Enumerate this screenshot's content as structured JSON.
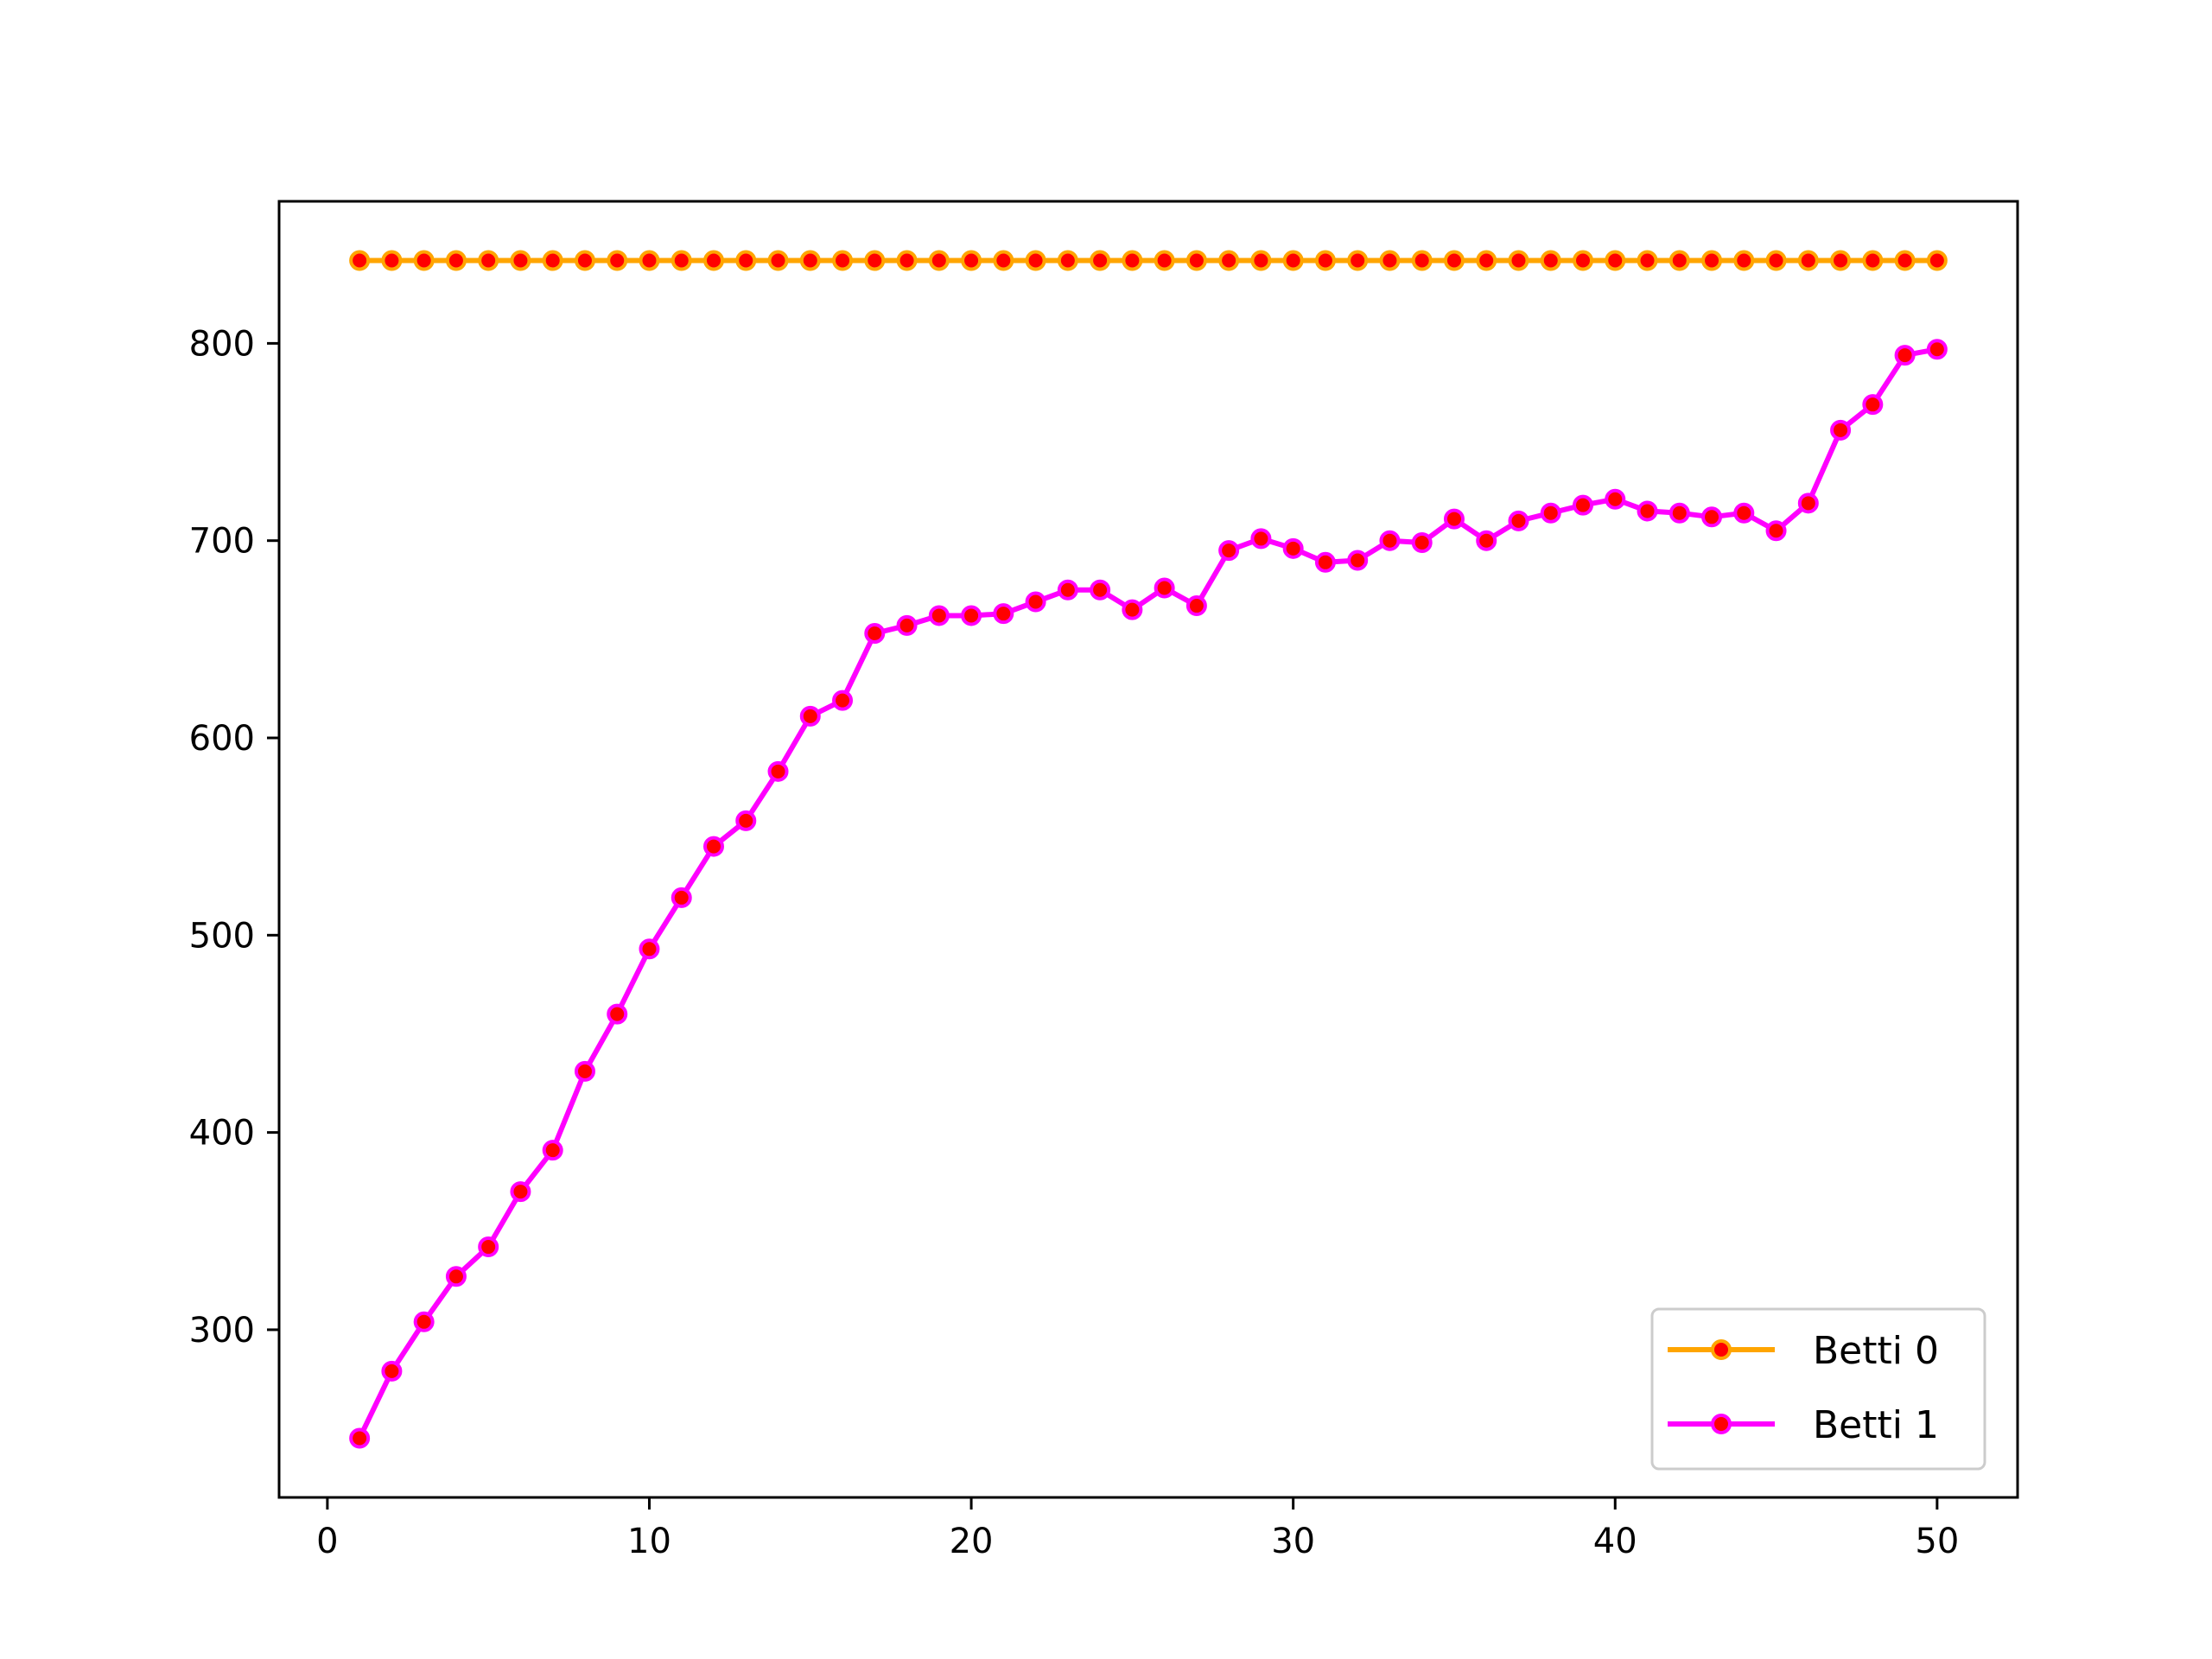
{
  "chart_data": {
    "type": "line",
    "title": "",
    "xlabel": "",
    "ylabel": "",
    "xlim": [
      -1.5,
      52.5
    ],
    "ylim": [
      215,
      872
    ],
    "xticks": [
      0,
      10,
      20,
      30,
      40,
      50
    ],
    "yticks": [
      300,
      400,
      500,
      600,
      700,
      800
    ],
    "grid": false,
    "legend_position": "bottom-right",
    "marker_face_color": "#ff0000",
    "x": [
      1,
      2,
      3,
      4,
      5,
      6,
      7,
      8,
      9,
      10,
      11,
      12,
      13,
      14,
      15,
      16,
      17,
      18,
      19,
      20,
      21,
      22,
      23,
      24,
      25,
      26,
      27,
      28,
      29,
      30,
      31,
      32,
      33,
      34,
      35,
      36,
      37,
      38,
      39,
      40,
      41,
      42,
      43,
      44,
      45,
      46,
      47,
      48,
      49,
      50
    ],
    "series": [
      {
        "name": "Betti 0",
        "color": "#ffa500",
        "values": [
          842,
          842,
          842,
          842,
          842,
          842,
          842,
          842,
          842,
          842,
          842,
          842,
          842,
          842,
          842,
          842,
          842,
          842,
          842,
          842,
          842,
          842,
          842,
          842,
          842,
          842,
          842,
          842,
          842,
          842,
          842,
          842,
          842,
          842,
          842,
          842,
          842,
          842,
          842,
          842,
          842,
          842,
          842,
          842,
          842,
          842,
          842,
          842,
          842,
          842
        ]
      },
      {
        "name": "Betti 1",
        "color": "#ff00ff",
        "values": [
          245,
          279,
          304,
          327,
          342,
          370,
          391,
          431,
          460,
          493,
          519,
          545,
          558,
          583,
          611,
          619,
          653,
          657,
          662,
          662,
          663,
          669,
          675,
          675,
          665,
          676,
          667,
          695,
          701,
          696,
          689,
          690,
          700,
          699,
          711,
          700,
          710,
          714,
          718,
          721,
          715,
          714,
          712,
          714,
          705,
          719,
          756,
          769,
          794,
          797
        ]
      }
    ]
  }
}
